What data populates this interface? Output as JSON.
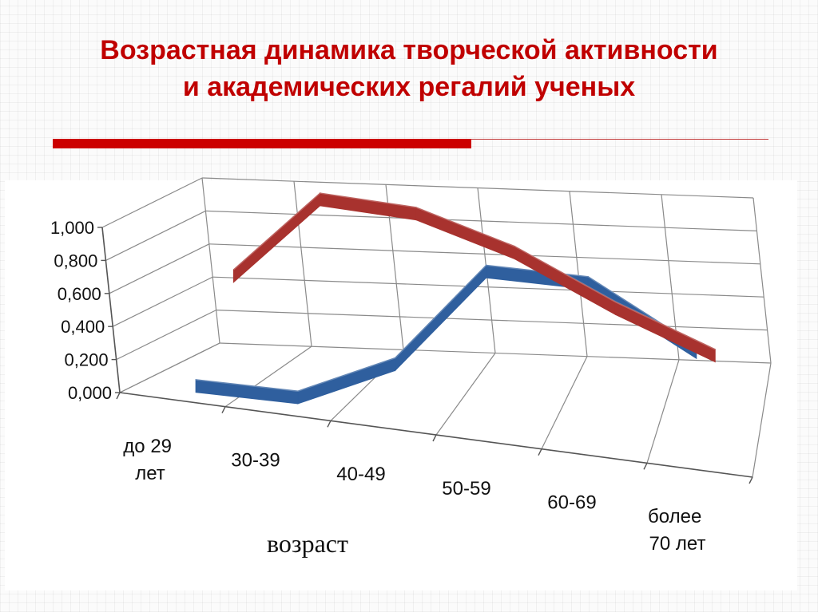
{
  "slide": {
    "title_line1": "Возрастная динамика творческой активности",
    "title_line2": "и академических регалий ученых",
    "accent_color": "#cc0000"
  },
  "chart_data": {
    "type": "line",
    "render_style": "3d-ribbon",
    "categories": [
      "до 29 лет",
      "30-39",
      "40-49",
      "50-59",
      "60-69",
      "более 70 лет"
    ],
    "category_labels": [
      [
        "до 29",
        "лет"
      ],
      [
        "30-39"
      ],
      [
        "40-49"
      ],
      [
        "50-59"
      ],
      [
        "60-69"
      ],
      [
        "более",
        "70 лет"
      ]
    ],
    "y_ticks": [
      "1,000",
      "0,800",
      "0,600",
      "0,400",
      "0,200",
      "0,000"
    ],
    "ylim": [
      0,
      1
    ],
    "xlabel": "возраст",
    "ylabel": "",
    "grid": true,
    "series": [
      {
        "color": "#2f5f9e",
        "values": [
          0.0,
          0.0,
          0.27,
          0.9,
          0.9,
          0.55
        ]
      },
      {
        "color": "#a8322e",
        "values": [
          0.5,
          1.0,
          0.95,
          0.75,
          0.45,
          0.2
        ]
      }
    ]
  }
}
